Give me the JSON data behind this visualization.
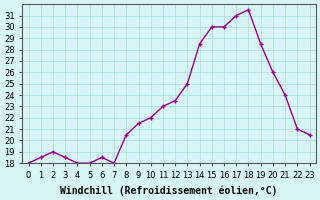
{
  "x": [
    0,
    1,
    2,
    3,
    4,
    5,
    6,
    7,
    8,
    9,
    10,
    11,
    12,
    13,
    14,
    15,
    16,
    17,
    18,
    19,
    20,
    21,
    22,
    23
  ],
  "y": [
    18,
    18.5,
    19,
    18.5,
    18,
    18,
    18.5,
    18,
    20.5,
    21.5,
    22,
    23,
    23.5,
    25,
    28.5,
    30,
    30,
    31,
    31.5,
    28.5,
    26,
    24,
    21,
    20.5
  ],
  "line_color": "#990099",
  "bg_color": "#d8f5f5",
  "grid_color": "#aadddd",
  "xlabel": "Windchill (Refroidissement éolien,°C)",
  "xlabel_fontsize": 7,
  "ylim": [
    18,
    32
  ],
  "xlim": [
    -0.5,
    23.5
  ],
  "yticks": [
    18,
    19,
    20,
    21,
    22,
    23,
    24,
    25,
    26,
    27,
    28,
    29,
    30,
    31
  ],
  "xticks": [
    0,
    1,
    2,
    3,
    4,
    5,
    6,
    7,
    8,
    9,
    10,
    11,
    12,
    13,
    14,
    15,
    16,
    17,
    18,
    19,
    20,
    21,
    22,
    23
  ],
  "tick_fontsize": 6,
  "marker": "P",
  "marker_size": 3,
  "line_width": 1.0
}
